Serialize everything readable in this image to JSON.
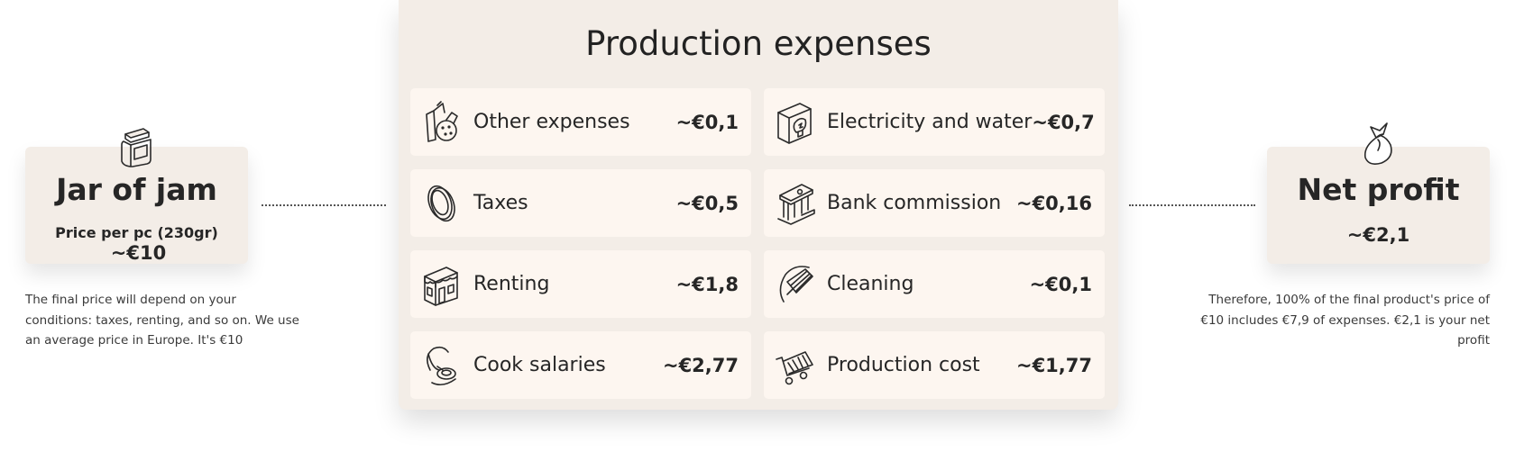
{
  "jar": {
    "icon": "jar-icon",
    "title": "Jar of jam",
    "price_label": "Price per pc (230gr)",
    "price_value": "~€10",
    "note": "The final price will depend on your conditions: taxes, renting, and so on. We use an average price in Europe. It's €10"
  },
  "expenses": {
    "title": "Production expenses",
    "items": [
      {
        "icon": "cookie-bag-icon",
        "label": "Other expenses",
        "amount": "~€0,1"
      },
      {
        "icon": "bulb-icon",
        "label": "Electricity and water",
        "amount": "~€0,7"
      },
      {
        "icon": "coin-icon",
        "label": "Taxes",
        "amount": "~€0,5"
      },
      {
        "icon": "bank-icon",
        "label": "Bank commission",
        "amount": "~€0,16"
      },
      {
        "icon": "shop-icon",
        "label": "Renting",
        "amount": "~€1,8"
      },
      {
        "icon": "broom-icon",
        "label": "Cleaning",
        "amount": "~€0,1"
      },
      {
        "icon": "ladle-icon",
        "label": "Cook salaries",
        "amount": "~€2,77"
      },
      {
        "icon": "cart-icon",
        "label": "Production cost",
        "amount": "~€1,77"
      }
    ]
  },
  "profit": {
    "icon": "money-bag-icon",
    "title": "Net profit",
    "value": "~€2,1",
    "note": "Therefore, 100% of the final product's price of €10 includes €7,9 of expenses. €2,1 is your net profit"
  }
}
